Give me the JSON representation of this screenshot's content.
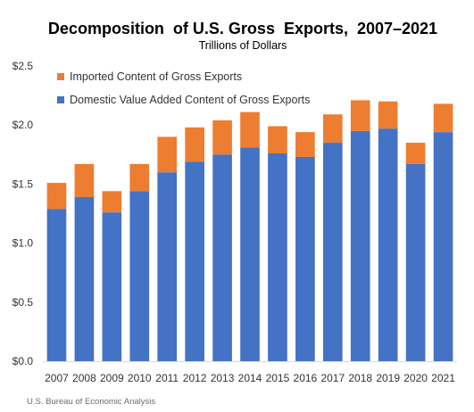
{
  "chart_data": {
    "type": "bar",
    "stacked": true,
    "title": "Decomposition  of U.S. Gross  Exports,  2007–2021",
    "subtitle": "Trillions of Dollars",
    "categories": [
      "2007",
      "2008",
      "2009",
      "2010",
      "2011",
      "2012",
      "2013",
      "2014",
      "2015",
      "2016",
      "2017",
      "2018",
      "2019",
      "2020",
      "2021"
    ],
    "series": [
      {
        "name": "Domestic Value Added Content of Gross Exports",
        "color": "#4472C4",
        "values": [
          1.29,
          1.39,
          1.26,
          1.44,
          1.6,
          1.69,
          1.75,
          1.81,
          1.76,
          1.73,
          1.85,
          1.95,
          1.97,
          1.67,
          1.94
        ]
      },
      {
        "name": "Imported Content of Gross Exports",
        "color": "#ED7D31",
        "values": [
          0.22,
          0.28,
          0.18,
          0.23,
          0.3,
          0.29,
          0.29,
          0.3,
          0.23,
          0.21,
          0.24,
          0.26,
          0.23,
          0.18,
          0.24
        ]
      }
    ],
    "ylim": [
      0,
      2.5
    ],
    "yticks": [
      "$0.0",
      "$0.5",
      "$1.0",
      "$1.5",
      "$2.0",
      "$2.5"
    ],
    "ytick_values": [
      0,
      0.5,
      1.0,
      1.5,
      2.0,
      2.5
    ],
    "legend_order": [
      1,
      0
    ],
    "legend_position": "top-left",
    "grid": false,
    "source": "U.S. Bureau of Economic Analysis"
  }
}
